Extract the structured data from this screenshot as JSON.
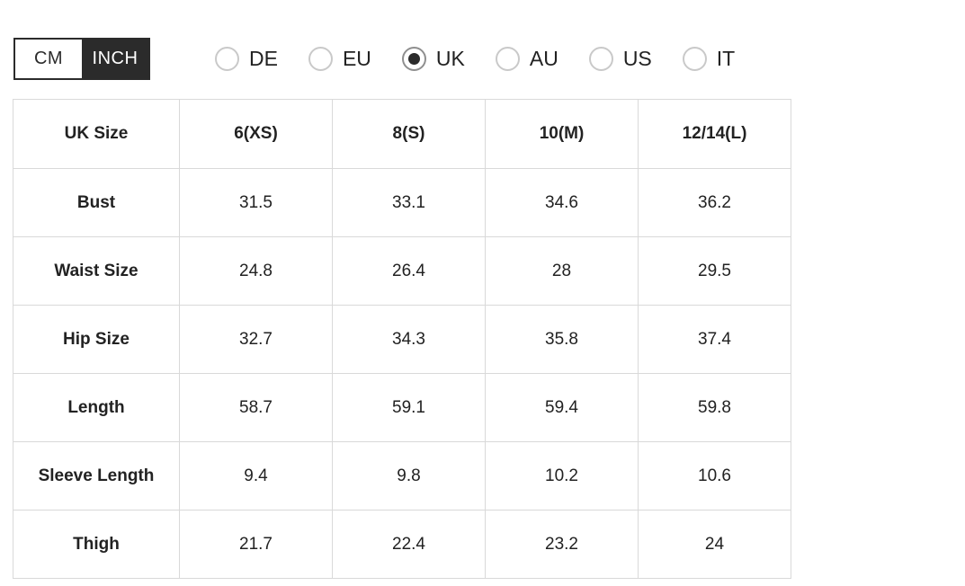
{
  "unit_toggle": {
    "options": [
      {
        "label": "CM",
        "selected": false
      },
      {
        "label": "INCH",
        "selected": true
      }
    ]
  },
  "region_selector": {
    "options": [
      {
        "label": "DE",
        "selected": false
      },
      {
        "label": "EU",
        "selected": false
      },
      {
        "label": "UK",
        "selected": true
      },
      {
        "label": "AU",
        "selected": false
      },
      {
        "label": "US",
        "selected": false
      },
      {
        "label": "IT",
        "selected": false
      }
    ]
  },
  "size_table": {
    "columns": [
      "UK Size",
      "6(XS)",
      "8(S)",
      "10(M)",
      "12/14(L)"
    ],
    "rows": [
      {
        "label": "Bust",
        "values": [
          "31.5",
          "33.1",
          "34.6",
          "36.2"
        ]
      },
      {
        "label": "Waist Size",
        "values": [
          "24.8",
          "26.4",
          "28",
          "29.5"
        ]
      },
      {
        "label": "Hip Size",
        "values": [
          "32.7",
          "34.3",
          "35.8",
          "37.4"
        ]
      },
      {
        "label": "Length",
        "values": [
          "58.7",
          "59.1",
          "59.4",
          "59.8"
        ]
      },
      {
        "label": "Sleeve Length",
        "values": [
          "9.4",
          "9.8",
          "10.2",
          "10.6"
        ]
      },
      {
        "label": "Thigh",
        "values": [
          "21.7",
          "22.4",
          "23.2",
          "24"
        ]
      }
    ]
  },
  "colors": {
    "accent_dark": "#2b2b2b",
    "table_border": "#d9d9d9",
    "text": "#222222",
    "radio_border_unselected": "#c9c9c9",
    "radio_border_selected": "#8f8f8f"
  }
}
